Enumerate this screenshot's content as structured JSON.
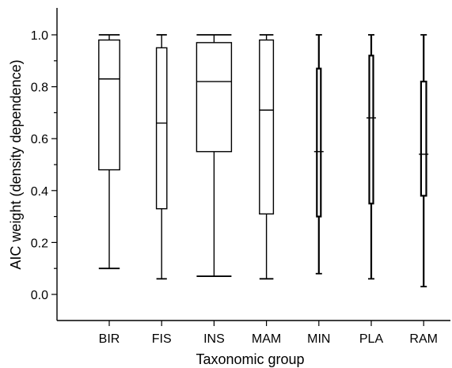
{
  "chart_data": {
    "type": "box",
    "title": "",
    "xlabel": "Taxonomic group",
    "ylabel": "AIC weight (density dependence)",
    "ylim": [
      -0.2,
      1.1
    ],
    "yticks": [
      0.0,
      0.2,
      0.4,
      0.6,
      0.8,
      1.0
    ],
    "ytick_labels": [
      "0.0",
      "0.2",
      "0.4",
      "0.6",
      "0.8",
      "1.0"
    ],
    "grid": false,
    "categories": [
      "BIR",
      "FIS",
      "INS",
      "MAM",
      "MIN",
      "PLA",
      "RAM"
    ],
    "boxes": [
      {
        "category": "BIR",
        "min": 0.1,
        "q1": 0.48,
        "median": 0.83,
        "q3": 0.98,
        "max": 1.0,
        "relative_width": 0.6
      },
      {
        "category": "FIS",
        "min": 0.06,
        "q1": 0.33,
        "median": 0.66,
        "q3": 0.95,
        "max": 1.0,
        "relative_width": 0.3
      },
      {
        "category": "INS",
        "min": 0.07,
        "q1": 0.55,
        "median": 0.82,
        "q3": 0.97,
        "max": 1.0,
        "relative_width": 1.0
      },
      {
        "category": "MAM",
        "min": 0.06,
        "q1": 0.31,
        "median": 0.71,
        "q3": 0.98,
        "max": 1.0,
        "relative_width": 0.4
      },
      {
        "category": "MIN",
        "min": 0.08,
        "q1": 0.3,
        "median": 0.55,
        "q3": 0.87,
        "max": 1.0,
        "relative_width": 0.1
      },
      {
        "category": "PLA",
        "min": 0.06,
        "q1": 0.35,
        "median": 0.68,
        "q3": 0.92,
        "max": 1.0,
        "relative_width": 0.1
      },
      {
        "category": "RAM",
        "min": 0.03,
        "q1": 0.38,
        "median": 0.54,
        "q3": 0.82,
        "max": 1.0,
        "relative_width": 0.15
      }
    ]
  }
}
